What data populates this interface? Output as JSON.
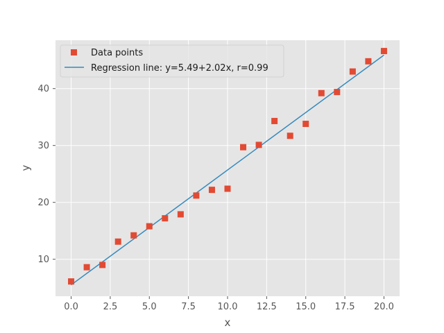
{
  "chart_data": {
    "type": "scatter",
    "title": "",
    "xlabel": "x",
    "ylabel": "y",
    "xlim": [
      -1,
      21
    ],
    "ylim": [
      3.5,
      48.5
    ],
    "xticks": [
      0.0,
      2.5,
      5.0,
      7.5,
      10.0,
      12.5,
      15.0,
      17.5,
      20.0
    ],
    "xtick_labels": [
      "0.0",
      "2.5",
      "5.0",
      "7.5",
      "10.0",
      "12.5",
      "15.0",
      "17.5",
      "20.0"
    ],
    "yticks": [
      10,
      20,
      30,
      40
    ],
    "ytick_labels": [
      "10",
      "20",
      "30",
      "40"
    ],
    "grid": true,
    "legend_position": "top-left",
    "series": [
      {
        "name": "Data points",
        "kind": "scatter",
        "marker": "square",
        "color": "#E24A33",
        "x": [
          0,
          1,
          2,
          3,
          4,
          5,
          6,
          7,
          8,
          9,
          10,
          11,
          12,
          13,
          14,
          15,
          16,
          17,
          18,
          19,
          20
        ],
        "y": [
          6.1,
          8.6,
          9.0,
          13.1,
          14.2,
          15.8,
          17.2,
          17.9,
          21.2,
          22.2,
          22.4,
          29.7,
          30.1,
          34.3,
          31.7,
          33.8,
          39.2,
          39.4,
          43.0,
          44.8,
          46.6
        ]
      },
      {
        "name": "Regression line: y=5.49+2.02x, r=0.99",
        "kind": "line",
        "color": "#348ABD",
        "intercept": 5.49,
        "slope": 2.02,
        "x_range": [
          0,
          20
        ]
      }
    ]
  },
  "colors": {
    "plot_background": "#E5E5E5",
    "grid": "#FFFFFF",
    "tick_label": "#555555"
  }
}
